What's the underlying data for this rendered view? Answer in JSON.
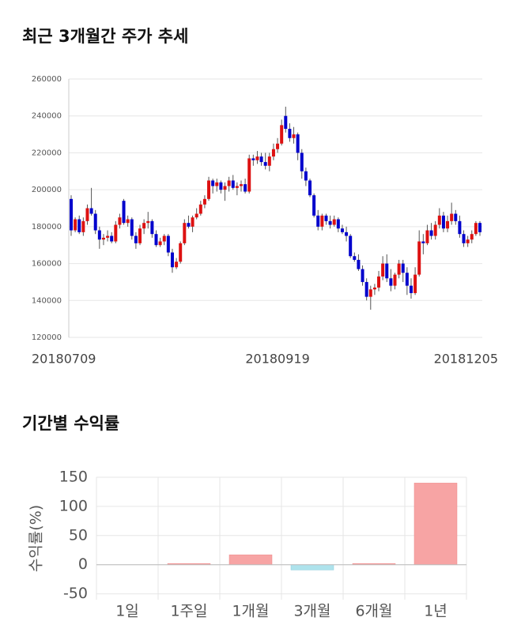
{
  "chart_data": [
    {
      "type": "candlestick",
      "title": "최근 3개월간 주가 추세",
      "categories": [
        "20180709",
        null,
        null,
        null,
        null,
        null,
        null,
        null,
        null,
        null,
        null,
        null,
        null,
        null,
        null,
        null,
        null,
        null,
        null,
        null,
        null,
        null,
        null,
        null,
        null,
        null,
        null,
        null,
        null,
        null,
        null,
        null,
        null,
        null,
        null,
        null,
        null,
        null,
        null,
        null,
        null,
        null,
        null,
        null,
        null,
        null,
        null,
        null,
        null,
        null,
        null,
        "20180919",
        null,
        null,
        null,
        null,
        null,
        null,
        null,
        null,
        null,
        null,
        null,
        null,
        null,
        null,
        null,
        null,
        null,
        null,
        null,
        null,
        null,
        null,
        null,
        null,
        null,
        null,
        null,
        null,
        null,
        null,
        null,
        null,
        null,
        null,
        null,
        null,
        null,
        null,
        null,
        null,
        null,
        null,
        null,
        null,
        null,
        null,
        null,
        null,
        null,
        "20181205"
      ],
      "open": [
        195000,
        178000,
        184000,
        177000,
        183000,
        190000,
        187000,
        178000,
        173000,
        174000,
        175000,
        172000,
        181000,
        194000,
        182000,
        184000,
        175000,
        171000,
        179000,
        182000,
        183000,
        176000,
        170000,
        172000,
        175000,
        166000,
        158000,
        161000,
        171000,
        182000,
        180000,
        185000,
        187000,
        192000,
        195000,
        205000,
        202000,
        204000,
        200000,
        202000,
        205000,
        201000,
        202000,
        203000,
        199000,
        217000,
        216000,
        218000,
        215000,
        213000,
        218000,
        222000,
        225000,
        240000,
        233000,
        228000,
        230000,
        220000,
        210000,
        205000,
        197000,
        186000,
        180000,
        186000,
        183000,
        181000,
        184000,
        179000,
        177000,
        175000,
        164000,
        162000,
        157000,
        150000,
        142000,
        146000,
        147000,
        153000,
        160000,
        152000,
        148000,
        154000,
        160000,
        155000,
        148000,
        144000,
        154000,
        172000,
        171000,
        178000,
        175000,
        181000,
        186000,
        179000,
        183000,
        187000,
        183000,
        176000,
        171000,
        173000,
        176000,
        182000
      ],
      "high": [
        197000,
        185000,
        186000,
        185000,
        192000,
        201000,
        189000,
        180000,
        176000,
        178000,
        177000,
        183000,
        187000,
        195000,
        186000,
        185000,
        177000,
        181000,
        184000,
        188000,
        184000,
        178000,
        174000,
        176000,
        176000,
        168000,
        163000,
        172000,
        184000,
        186000,
        186000,
        190000,
        194000,
        197000,
        207000,
        206000,
        206000,
        205000,
        204000,
        207000,
        208000,
        204000,
        205000,
        206000,
        219000,
        219000,
        221000,
        220000,
        220000,
        220000,
        225000,
        228000,
        238000,
        245000,
        236000,
        234000,
        231000,
        222000,
        212000,
        206000,
        198000,
        189000,
        187000,
        187000,
        186000,
        186000,
        185000,
        181000,
        180000,
        176000,
        166000,
        165000,
        159000,
        152000,
        148000,
        149000,
        156000,
        164000,
        165000,
        157000,
        155000,
        162000,
        162000,
        158000,
        152000,
        158000,
        178000,
        176000,
        181000,
        182000,
        183000,
        190000,
        188000,
        186000,
        193000,
        189000,
        186000,
        178000,
        175000,
        178000,
        183000,
        183000
      ],
      "low": [
        175000,
        177000,
        176000,
        175000,
        181000,
        186000,
        176000,
        168000,
        170000,
        172000,
        171000,
        171000,
        179000,
        181000,
        180000,
        173000,
        168000,
        170000,
        176000,
        179000,
        174000,
        169000,
        169000,
        170000,
        164000,
        155000,
        157000,
        160000,
        170000,
        179000,
        177000,
        184000,
        186000,
        190000,
        194000,
        198000,
        199000,
        198000,
        194000,
        199000,
        200000,
        197000,
        199000,
        198000,
        198000,
        213000,
        214000,
        213000,
        211000,
        210000,
        216000,
        220000,
        224000,
        231000,
        226000,
        225000,
        216000,
        206000,
        202000,
        196000,
        185000,
        178000,
        178000,
        181000,
        179000,
        180000,
        177000,
        176000,
        172000,
        163000,
        161000,
        156000,
        148000,
        140000,
        135000,
        143000,
        145000,
        151000,
        150000,
        145000,
        146000,
        152000,
        150000,
        143000,
        141000,
        143000,
        153000,
        165000,
        170000,
        173000,
        173000,
        179000,
        177000,
        177000,
        181000,
        181000,
        174000,
        169000,
        169000,
        171000,
        175000,
        175000
      ],
      "close": [
        178000,
        184000,
        177000,
        183000,
        190000,
        187000,
        178000,
        173000,
        174000,
        175000,
        172000,
        181000,
        185000,
        182000,
        184000,
        175000,
        171000,
        179000,
        182000,
        183000,
        176000,
        170000,
        172000,
        175000,
        166000,
        158000,
        161000,
        171000,
        182000,
        180000,
        185000,
        187000,
        192000,
        195000,
        205000,
        202000,
        204000,
        200000,
        202000,
        205000,
        201000,
        202000,
        203000,
        199000,
        217000,
        216000,
        218000,
        215000,
        213000,
        218000,
        222000,
        225000,
        235000,
        233000,
        228000,
        230000,
        220000,
        210000,
        205000,
        197000,
        186000,
        180000,
        186000,
        183000,
        181000,
        184000,
        179000,
        177000,
        175000,
        164000,
        162000,
        157000,
        150000,
        142000,
        146000,
        147000,
        153000,
        160000,
        152000,
        148000,
        154000,
        160000,
        155000,
        148000,
        144000,
        154000,
        172000,
        171000,
        178000,
        175000,
        181000,
        186000,
        179000,
        183000,
        187000,
        183000,
        176000,
        171000,
        173000,
        176000,
        182000,
        177000
      ],
      "up_color": "#dd1111",
      "down_color": "#0000cc",
      "ylim": [
        120000,
        260000
      ],
      "yticks": [
        120000,
        140000,
        160000,
        180000,
        200000,
        220000,
        240000,
        260000
      ],
      "grid": true
    },
    {
      "type": "bar",
      "title": "기간별 수익률",
      "ylabel": "수익률(%)",
      "categories": [
        "1일",
        "1주일",
        "1개월",
        "3개월",
        "6개월",
        "1년"
      ],
      "values": [
        0,
        2,
        17,
        -9,
        2,
        140
      ],
      "positive_color": "#f7a4a4",
      "negative_color": "#aee3ec",
      "ylim": [
        -60,
        150
      ],
      "yticks": [
        -50,
        0,
        50,
        100,
        150
      ],
      "grid": true
    }
  ]
}
